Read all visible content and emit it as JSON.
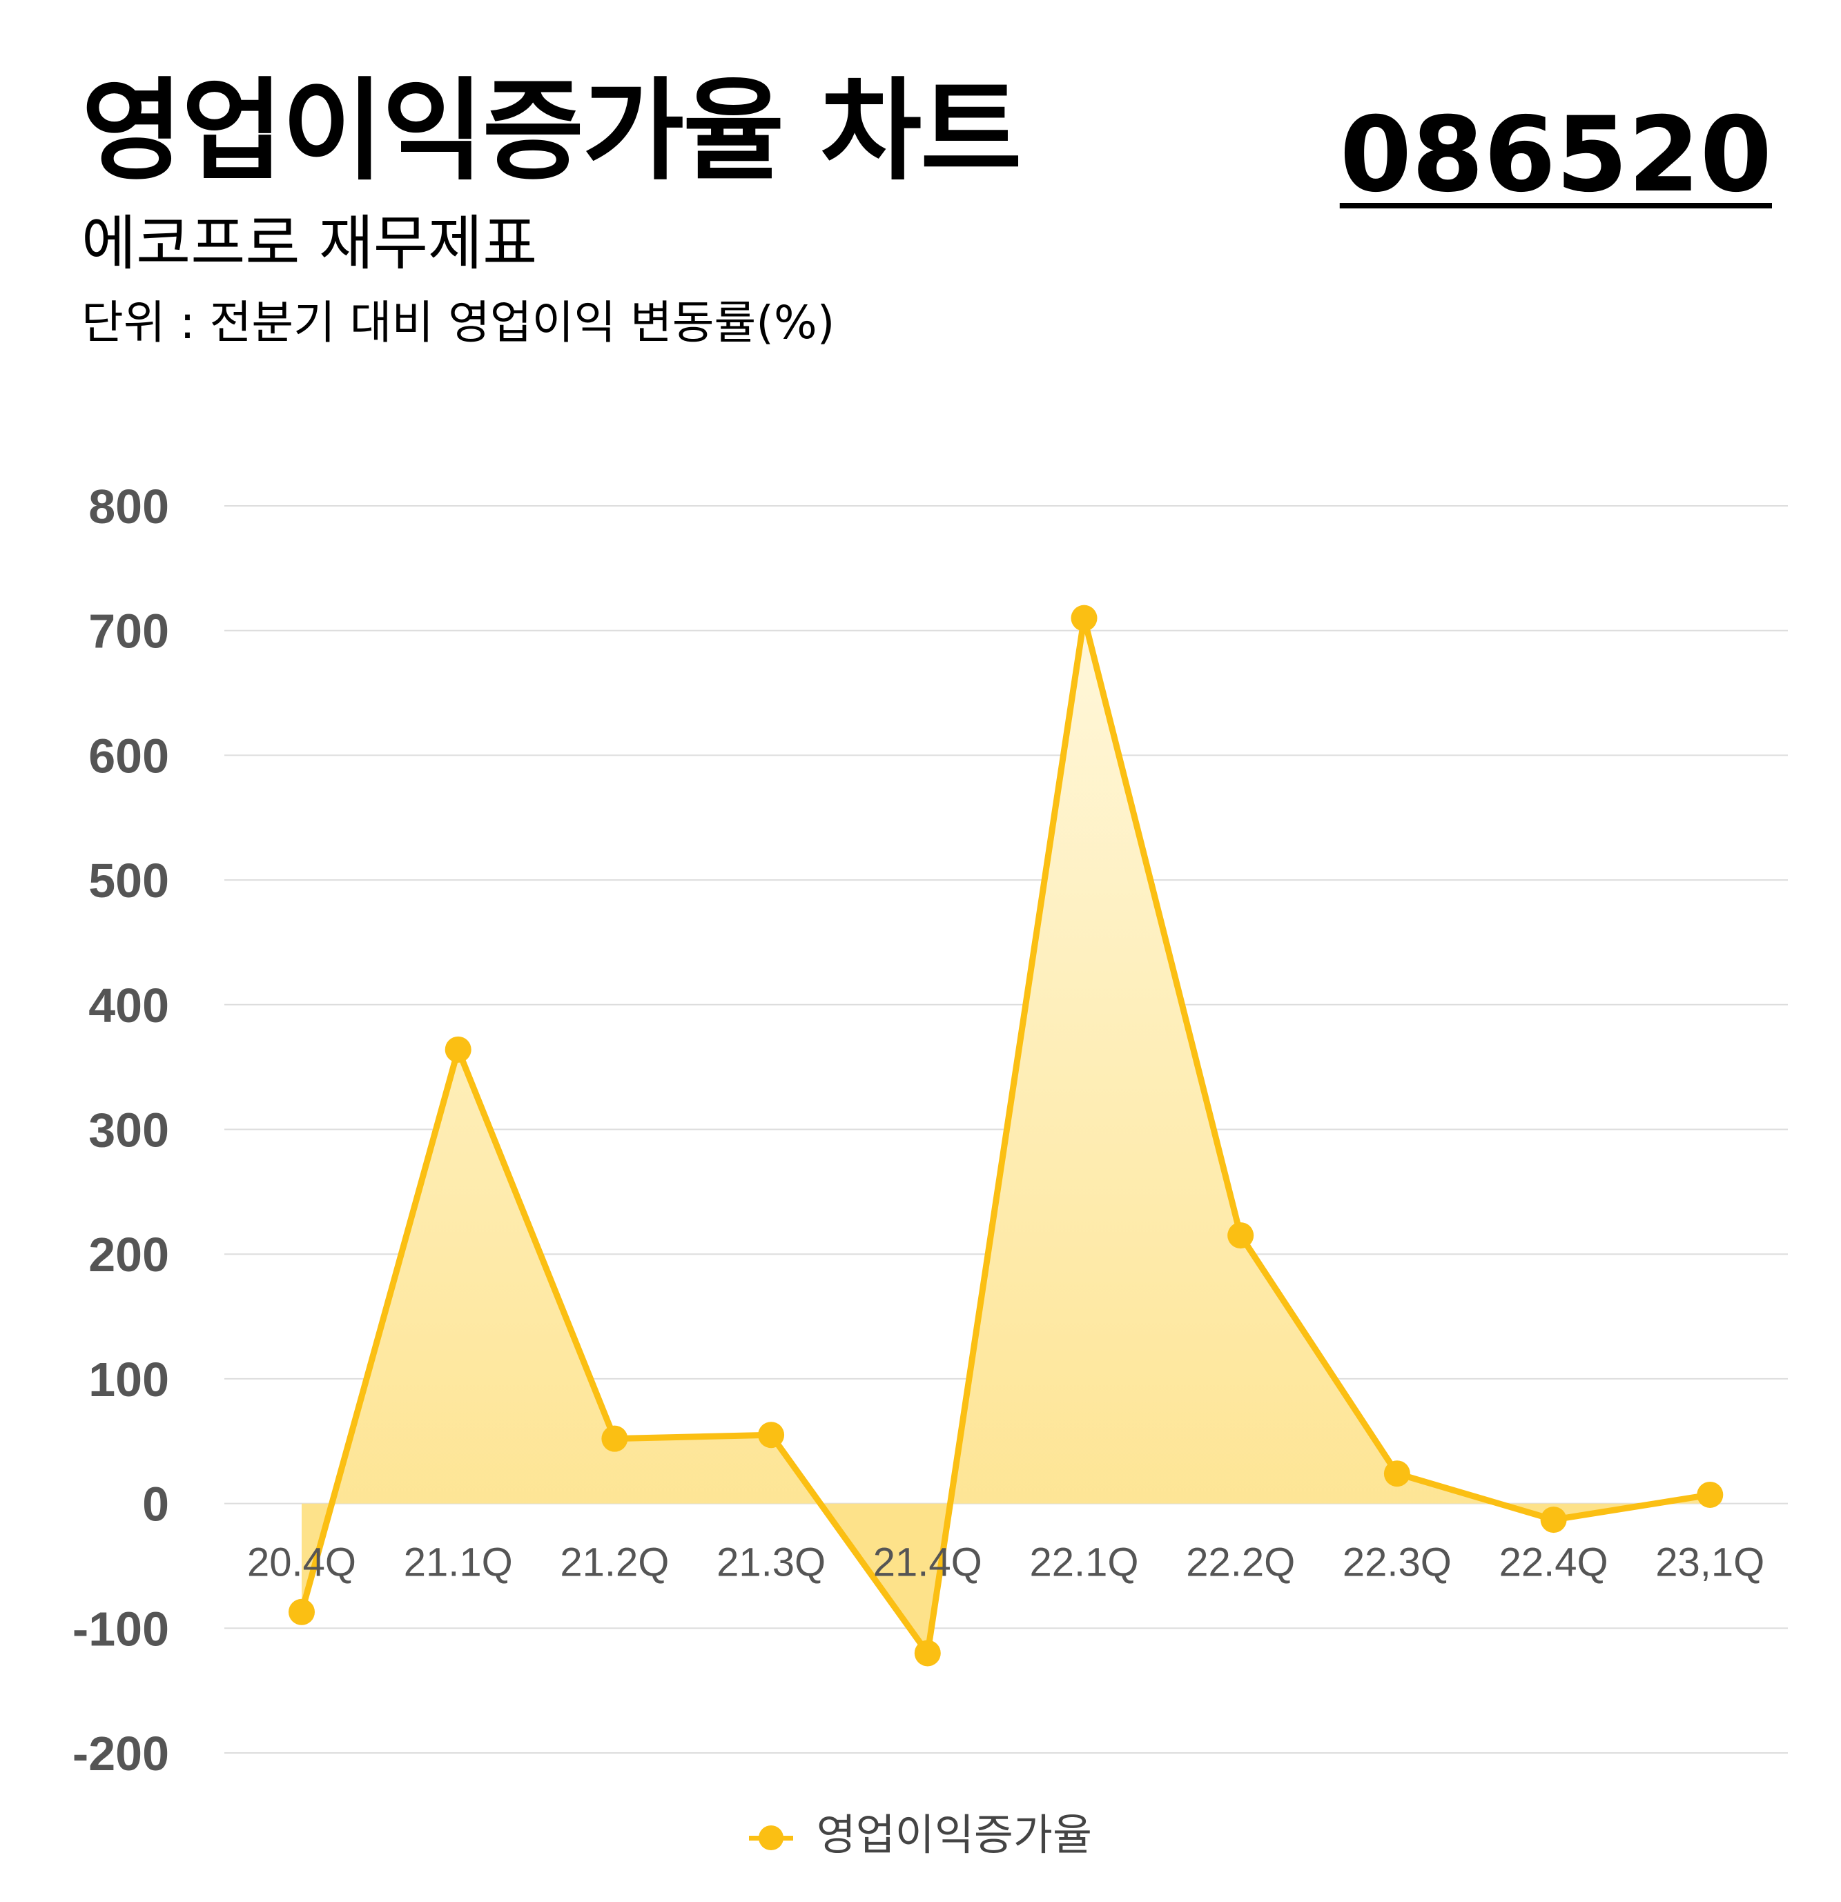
{
  "header": {
    "title": "영업이익증가율 차트",
    "code": "086520",
    "subtitle": "에코프로 재무제표",
    "unit": "단위 : 전분기 대비 영업이익 변동률(%)"
  },
  "colors": {
    "series": "#FBBF13",
    "area_top": "#FFF7DA",
    "area_bottom": "#FDE28A",
    "grid": "#DDDDDD"
  },
  "chart_data": {
    "type": "area",
    "title": "영업이익증가율 차트",
    "categories": [
      "20.4Q",
      "21.1Q",
      "21.2Q",
      "21.3Q",
      "21.4Q",
      "22.1Q",
      "22.2Q",
      "22.3Q",
      "22.4Q",
      "23,1Q"
    ],
    "series": [
      {
        "name": "영업이익증가율",
        "values": [
          -87,
          364,
          52,
          55,
          -120,
          710,
          215,
          24,
          -13,
          7
        ]
      }
    ],
    "y_ticks": [
      "800",
      "700",
      "600",
      "500",
      "400",
      "300",
      "200",
      "100",
      "0",
      "-100",
      "-200"
    ],
    "ylim": [
      -200,
      800
    ],
    "grid": true,
    "legend": "bottom-center",
    "xlabel": "",
    "ylabel": ""
  }
}
